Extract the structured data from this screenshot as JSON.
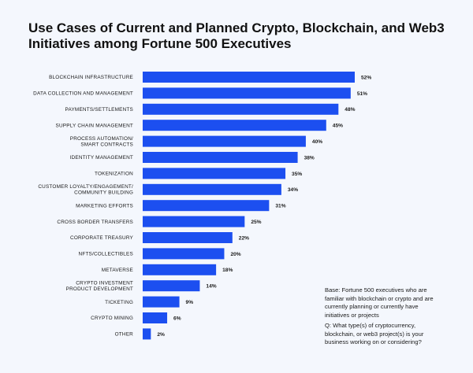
{
  "chart_data": {
    "type": "bar",
    "orientation": "horizontal",
    "title": "Use Cases of Current and Planned Crypto, Blockchain, and Web3 Initiatives among Fortune 500 Executives",
    "categories": [
      "BLOCKCHAIN INFRASTRUCTURE",
      "DATA COLLECTION AND MANAGEMENT",
      "PAYMENTS/SETTLEMENTS",
      "SUPPLY CHAIN MANAGEMENT",
      "PROCESS AUTOMATION/ SMART CONTRACTS",
      "IDENTITY MANAGEMENT",
      "TOKENIZATION",
      "CUSTOMER LOYALTY/ENGAGEMENT/ COMMUNITY BUILDING",
      "MARKETING EFFORTS",
      "CROSS BORDER TRANSFERS",
      "CORPORATE TREASURY",
      "NFTS/COLLECTIBLES",
      "METAVERSE",
      "CRYPTO INVESTMENT PRODUCT DEVELOPMENT",
      "TICKETING",
      "CRYPTO MINING",
      "OTHER"
    ],
    "values": [
      52,
      51,
      48,
      45,
      40,
      38,
      35,
      34,
      31,
      25,
      22,
      20,
      18,
      14,
      9,
      6,
      2
    ],
    "value_labels": [
      "52%",
      "51%",
      "48%",
      "45%",
      "40%",
      "38%",
      "35%",
      "34%",
      "31%",
      "25%",
      "22%",
      "20%",
      "18%",
      "14%",
      "9%",
      "6%",
      "2%"
    ],
    "xlim": [
      0,
      52
    ],
    "bar_color": "#1c4ff0",
    "grid": false,
    "legend": "none"
  },
  "notes": {
    "base": "Base: Fortune 500 executives who are familiar with blockchain or crypto and are currently planning or currently have initiatives or projects",
    "question": "Q: What type(s) of cryptocurrency, blockchain, or web3 project(s) is your business working on or considering?"
  },
  "colors": {
    "background": "#f4f7fd",
    "bar": "#1c4ff0",
    "text": "#111111"
  }
}
